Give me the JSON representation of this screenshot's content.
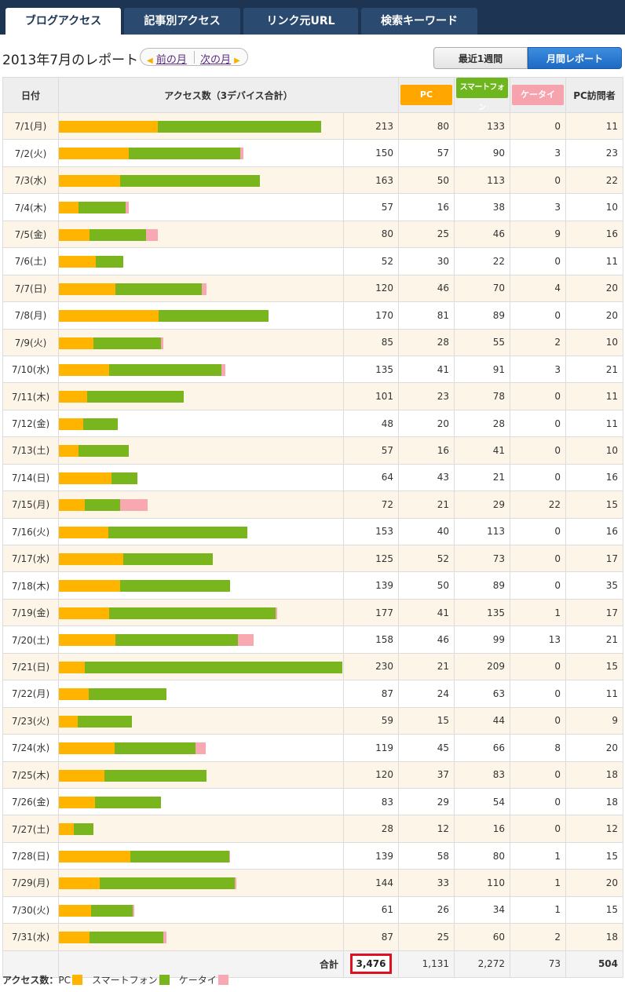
{
  "tabs": [
    {
      "label": "ブログアクセス",
      "active": true
    },
    {
      "label": "記事別アクセス",
      "active": false
    },
    {
      "label": "リンク元URL",
      "active": false
    },
    {
      "label": "検索キーワード",
      "active": false
    }
  ],
  "header": {
    "title": "2013年7月のレポート",
    "prev_month": "前の月",
    "next_month": "次の月",
    "prev_icon": "triangle-left-icon",
    "next_icon": "triangle-right-icon"
  },
  "view_toggle": {
    "week_label": "最近1週間",
    "month_label": "月間レポート",
    "selected": "month"
  },
  "table": {
    "headers": {
      "date": "日付",
      "access": "アクセス数（3デバイス合計）",
      "pc": "PC",
      "smartphone": "スマートフォン",
      "mobile": "ケータイ",
      "pc_visitors": "PC訪問者"
    },
    "rows": [
      {
        "date": "7/1(月)",
        "total": 213,
        "pc": 80,
        "sp": 133,
        "mb": 0,
        "visitors": 11
      },
      {
        "date": "7/2(火)",
        "total": 150,
        "pc": 57,
        "sp": 90,
        "mb": 3,
        "visitors": 23
      },
      {
        "date": "7/3(水)",
        "total": 163,
        "pc": 50,
        "sp": 113,
        "mb": 0,
        "visitors": 22
      },
      {
        "date": "7/4(木)",
        "total": 57,
        "pc": 16,
        "sp": 38,
        "mb": 3,
        "visitors": 10
      },
      {
        "date": "7/5(金)",
        "total": 80,
        "pc": 25,
        "sp": 46,
        "mb": 9,
        "visitors": 16
      },
      {
        "date": "7/6(土)",
        "total": 52,
        "pc": 30,
        "sp": 22,
        "mb": 0,
        "visitors": 11
      },
      {
        "date": "7/7(日)",
        "total": 120,
        "pc": 46,
        "sp": 70,
        "mb": 4,
        "visitors": 20
      },
      {
        "date": "7/8(月)",
        "total": 170,
        "pc": 81,
        "sp": 89,
        "mb": 0,
        "visitors": 20
      },
      {
        "date": "7/9(火)",
        "total": 85,
        "pc": 28,
        "sp": 55,
        "mb": 2,
        "visitors": 10
      },
      {
        "date": "7/10(水)",
        "total": 135,
        "pc": 41,
        "sp": 91,
        "mb": 3,
        "visitors": 21
      },
      {
        "date": "7/11(木)",
        "total": 101,
        "pc": 23,
        "sp": 78,
        "mb": 0,
        "visitors": 11
      },
      {
        "date": "7/12(金)",
        "total": 48,
        "pc": 20,
        "sp": 28,
        "mb": 0,
        "visitors": 11
      },
      {
        "date": "7/13(土)",
        "total": 57,
        "pc": 16,
        "sp": 41,
        "mb": 0,
        "visitors": 10
      },
      {
        "date": "7/14(日)",
        "total": 64,
        "pc": 43,
        "sp": 21,
        "mb": 0,
        "visitors": 16
      },
      {
        "date": "7/15(月)",
        "total": 72,
        "pc": 21,
        "sp": 29,
        "mb": 22,
        "visitors": 15
      },
      {
        "date": "7/16(火)",
        "total": 153,
        "pc": 40,
        "sp": 113,
        "mb": 0,
        "visitors": 16
      },
      {
        "date": "7/17(水)",
        "total": 125,
        "pc": 52,
        "sp": 73,
        "mb": 0,
        "visitors": 17
      },
      {
        "date": "7/18(木)",
        "total": 139,
        "pc": 50,
        "sp": 89,
        "mb": 0,
        "visitors": 35
      },
      {
        "date": "7/19(金)",
        "total": 177,
        "pc": 41,
        "sp": 135,
        "mb": 1,
        "visitors": 17
      },
      {
        "date": "7/20(土)",
        "total": 158,
        "pc": 46,
        "sp": 99,
        "mb": 13,
        "visitors": 21
      },
      {
        "date": "7/21(日)",
        "total": 230,
        "pc": 21,
        "sp": 209,
        "mb": 0,
        "visitors": 15
      },
      {
        "date": "7/22(月)",
        "total": 87,
        "pc": 24,
        "sp": 63,
        "mb": 0,
        "visitors": 11
      },
      {
        "date": "7/23(火)",
        "total": 59,
        "pc": 15,
        "sp": 44,
        "mb": 0,
        "visitors": 9
      },
      {
        "date": "7/24(水)",
        "total": 119,
        "pc": 45,
        "sp": 66,
        "mb": 8,
        "visitors": 20
      },
      {
        "date": "7/25(木)",
        "total": 120,
        "pc": 37,
        "sp": 83,
        "mb": 0,
        "visitors": 18
      },
      {
        "date": "7/26(金)",
        "total": 83,
        "pc": 29,
        "sp": 54,
        "mb": 0,
        "visitors": 18
      },
      {
        "date": "7/27(土)",
        "total": 28,
        "pc": 12,
        "sp": 16,
        "mb": 0,
        "visitors": 12
      },
      {
        "date": "7/28(日)",
        "total": 139,
        "pc": 58,
        "sp": 80,
        "mb": 1,
        "visitors": 15
      },
      {
        "date": "7/29(月)",
        "total": 144,
        "pc": 33,
        "sp": 110,
        "mb": 1,
        "visitors": 20
      },
      {
        "date": "7/30(火)",
        "total": 61,
        "pc": 26,
        "sp": 34,
        "mb": 1,
        "visitors": 15
      },
      {
        "date": "7/31(水)",
        "total": 87,
        "pc": 25,
        "sp": 60,
        "mb": 2,
        "visitors": 18
      }
    ],
    "footer": {
      "label": "合計",
      "total": "3,476",
      "pc": "1,131",
      "sp": "2,272",
      "mb": "73",
      "visitors": "504"
    }
  },
  "legend": {
    "lead": "アクセス数：",
    "pc": "PC",
    "sp": "スマートフォン",
    "mb": "ケータイ"
  },
  "colors": {
    "pc": "#ffb400",
    "smartphone": "#79b51c",
    "mobile": "#f7a8b0",
    "tabbar": "#1d3552",
    "highlight": "#e01020"
  }
}
